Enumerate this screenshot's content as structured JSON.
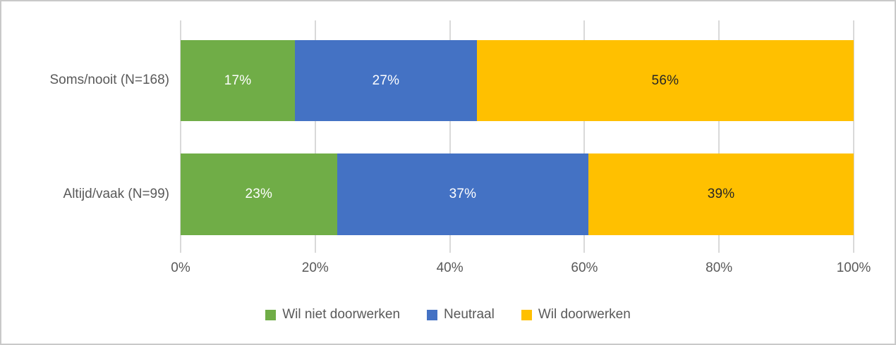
{
  "chart_data": {
    "type": "bar",
    "orientation": "horizontal",
    "stacked": true,
    "percent_stacked": true,
    "title": "",
    "xlabel": "",
    "ylabel": "",
    "xlim": [
      0,
      100
    ],
    "grid": "vertical",
    "gridline_color": "#D9D9D9",
    "background": "#FFFFFF",
    "border_color": "#C9C9C9",
    "text_color": "#595959",
    "categories": [
      "Soms/nooit (N=168)",
      "Altijd/vaak (N=99)"
    ],
    "series": [
      {
        "name": "Wil niet doorwerken",
        "color": "#70AD47",
        "label_color": "#FFFFFF",
        "values": [
          17,
          23
        ]
      },
      {
        "name": "Neutraal",
        "color": "#4472C4",
        "label_color": "#FFFFFF",
        "values": [
          27,
          37
        ]
      },
      {
        "name": "Wil doorwerken",
        "color": "#FFC000",
        "label_color": "#262626",
        "values": [
          56,
          39
        ]
      }
    ],
    "data_labels": [
      [
        "17%",
        "27%",
        "56%"
      ],
      [
        "23%",
        "37%",
        "39%"
      ]
    ],
    "x_tick_values": [
      0,
      20,
      40,
      60,
      80,
      100
    ],
    "x_tick_labels": [
      "0%",
      "20%",
      "40%",
      "60%",
      "80%",
      "100%"
    ],
    "legend_position": "bottom",
    "legend": [
      "Wil niet doorwerken",
      "Neutraal",
      "Wil doorwerken"
    ]
  }
}
